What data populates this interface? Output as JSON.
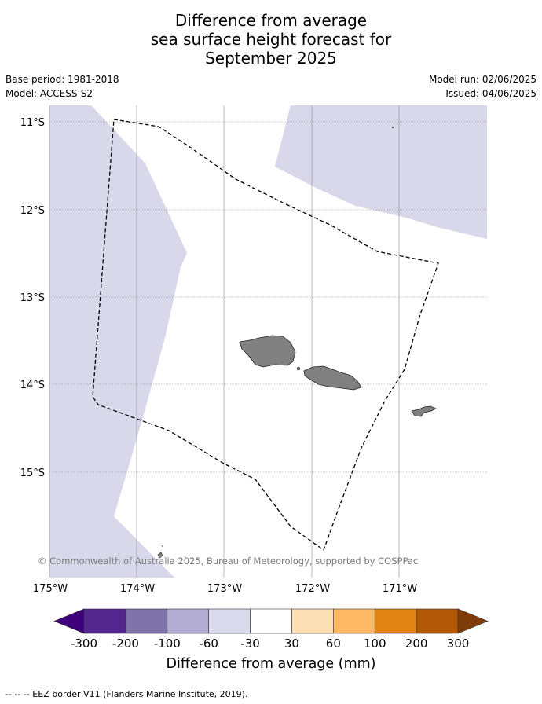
{
  "title_lines": [
    "Difference from average",
    "sea surface height forecast for",
    "September 2025"
  ],
  "header_left": {
    "base_period": "Base period: 1981-2018",
    "model": "Model: ACCESS-S2"
  },
  "header_right": {
    "model_run": "Model run: 02/06/2025",
    "issued": "Issued: 04/06/2025"
  },
  "map": {
    "lat_labels": [
      "11°S",
      "12°S",
      "13°S",
      "14°S",
      "15°S"
    ],
    "lon_labels": [
      "175°W",
      "174°W",
      "173°W",
      "172°W",
      "171°W"
    ],
    "copyright": "© Commonwealth of Australia 2025, Bureau of Meteorology, supported by COSPPac",
    "colors": {
      "ocean_negative": "#d8d8ea",
      "land": "#808080",
      "grid": "#888888",
      "eez": "#000000"
    }
  },
  "colorbar": {
    "ticks": [
      "-300",
      "-200",
      "-100",
      "-60",
      "-30",
      "30",
      "60",
      "100",
      "200",
      "300"
    ],
    "colors": [
      "#3f007d",
      "#54278f",
      "#8073ac",
      "#b2abd2",
      "#d8daeb",
      "#ffffff",
      "#fee0b6",
      "#fdb863",
      "#e08214",
      "#b35806",
      "#7f3b08"
    ],
    "label": "Difference from average (mm)"
  },
  "footer": "--  --  -- EEZ border V11 (Flanders Marine Institute, 2019)."
}
